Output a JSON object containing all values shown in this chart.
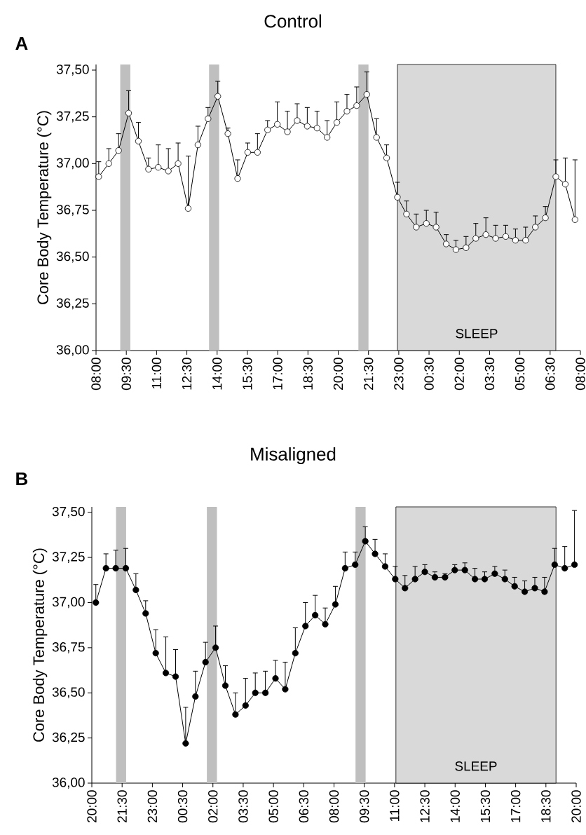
{
  "chart_data": [
    {
      "type": "line",
      "title": "Control",
      "ylabel": "Core Body Temperature (°C)",
      "annotations": [
        "A"
      ],
      "x": [
        "2000-01-01T08:08",
        "2000-01-01T08:38",
        "2000-01-01T09:07",
        "2000-01-01T09:37",
        "2000-01-01T10:06",
        "2000-01-01T10:36",
        "2000-01-01T11:05",
        "2000-01-01T11:35",
        "2000-01-01T12:04",
        "2000-01-01T12:34",
        "2000-01-01T13:03",
        "2000-01-01T13:33",
        "2000-01-01T14:02",
        "2000-01-01T14:32",
        "2000-01-01T15:01",
        "2000-01-01T15:31",
        "2000-01-01T16:00",
        "2000-01-01T16:30",
        "2000-01-01T16:59",
        "2000-01-01T17:29",
        "2000-01-01T17:58",
        "2000-01-01T18:28",
        "2000-01-01T18:57",
        "2000-01-01T19:27",
        "2000-01-01T19:56",
        "2000-01-01T20:26",
        "2000-01-01T20:55",
        "2000-01-01T21:25",
        "2000-01-01T21:54",
        "2000-01-01T22:24",
        "2000-01-01T22:56",
        "2000-01-01T23:23",
        "2000-01-01T23:52",
        "2000-01-02T00:22",
        "2000-01-02T00:51",
        "2000-01-02T01:21",
        "2000-01-02T01:50",
        "2000-01-02T02:20",
        "2000-01-02T02:49",
        "2000-01-02T03:19",
        "2000-01-02T03:48",
        "2000-01-02T04:18",
        "2000-01-02T04:47",
        "2000-01-02T05:17",
        "2000-01-02T05:46",
        "2000-01-02T06:16",
        "2000-01-02T06:47",
        "2000-01-02T07:15",
        "2000-01-02T07:44"
      ],
      "series": [
        {
          "color": "#ffffff",
          "values": [
            36.93,
            37.0,
            37.07,
            37.27,
            37.12,
            36.97,
            36.98,
            36.96,
            37.0,
            36.76,
            37.1,
            37.24,
            37.36,
            37.16,
            36.92,
            37.06,
            37.06,
            37.18,
            37.21,
            37.17,
            37.23,
            37.2,
            37.19,
            37.14,
            37.22,
            37.28,
            37.31,
            37.37,
            37.14,
            37.03,
            36.82,
            36.73,
            36.66,
            36.68,
            36.66,
            36.57,
            36.54,
            36.55,
            36.6,
            36.62,
            36.6,
            36.61,
            36.59,
            36.59,
            36.66,
            36.71,
            36.93,
            36.89,
            36.7
          ],
          "errors": [
            [
              36.93,
              37.01
            ],
            [
              37.0,
              37.08
            ],
            [
              37.07,
              37.16
            ],
            [
              37.27,
              37.39
            ],
            [
              37.12,
              37.22
            ],
            [
              36.97,
              37.03
            ],
            [
              36.98,
              37.1
            ],
            [
              36.96,
              37.08
            ],
            [
              37.0,
              37.11
            ],
            [
              36.76,
              37.04
            ],
            [
              37.1,
              37.2
            ],
            [
              37.24,
              37.3
            ],
            [
              37.36,
              37.44
            ],
            [
              37.16,
              37.19
            ],
            [
              36.92,
              37.02
            ],
            [
              37.06,
              37.11
            ],
            [
              37.06,
              37.16
            ],
            [
              37.18,
              37.23
            ],
            [
              37.21,
              37.33
            ],
            [
              37.17,
              37.28
            ],
            [
              37.23,
              37.32
            ],
            [
              37.2,
              37.3
            ],
            [
              37.19,
              37.28
            ],
            [
              37.14,
              37.23
            ],
            [
              37.22,
              37.33
            ],
            [
              37.28,
              37.37
            ],
            [
              37.31,
              37.41
            ],
            [
              37.37,
              37.49
            ],
            [
              37.14,
              37.24
            ],
            [
              37.03,
              37.1
            ],
            [
              36.82,
              36.9
            ],
            [
              36.73,
              36.8
            ],
            [
              36.66,
              36.73
            ],
            [
              36.68,
              36.75
            ],
            [
              36.66,
              36.74
            ],
            [
              36.57,
              36.62
            ],
            [
              36.54,
              36.59
            ],
            [
              36.55,
              36.61
            ],
            [
              36.6,
              36.68
            ],
            [
              36.62,
              36.71
            ],
            [
              36.6,
              36.67
            ],
            [
              36.61,
              36.67
            ],
            [
              36.59,
              36.65
            ],
            [
              36.59,
              36.66
            ],
            [
              36.66,
              36.72
            ],
            [
              36.71,
              36.77
            ],
            [
              36.93,
              37.02
            ],
            [
              36.89,
              37.03
            ],
            [
              36.7,
              37.02
            ]
          ]
        }
      ],
      "xlim": [
        "2000-01-01T08:00",
        "2000-01-02T08:00"
      ],
      "ylim": [
        36,
        37.53
      ],
      "xticks": [
        {
          "value": "2000-01-01T08:00",
          "label": "08:00"
        },
        {
          "value": "2000-01-01T09:30",
          "label": "09:30"
        },
        {
          "value": "2000-01-01T11:00",
          "label": "11:00"
        },
        {
          "value": "2000-01-01T12:30",
          "label": "12:30"
        },
        {
          "value": "2000-01-01T14:00",
          "label": "14:00"
        },
        {
          "value": "2000-01-01T15:30",
          "label": "15:30"
        },
        {
          "value": "2000-01-01T17:00",
          "label": "17:00"
        },
        {
          "value": "2000-01-01T18:30",
          "label": "18:30"
        },
        {
          "value": "2000-01-01T20:00",
          "label": "20:00"
        },
        {
          "value": "2000-01-01T21:30",
          "label": "21:30"
        },
        {
          "value": "2000-01-01T23:00",
          "label": "23:00"
        },
        {
          "value": "2000-01-02T00:30",
          "label": "00:30"
        },
        {
          "value": "2000-01-02T02:00",
          "label": "02:00"
        },
        {
          "value": "2000-01-02T03:30",
          "label": "03:30"
        },
        {
          "value": "2000-01-02T05:00",
          "label": "05:00"
        },
        {
          "value": "2000-01-02T06:30",
          "label": "06:30"
        },
        {
          "value": "2000-01-02T08:00",
          "label": "08:00"
        }
      ],
      "yticks": [
        {
          "value": 36,
          "label": "36,00"
        },
        {
          "value": 36.25,
          "label": "36,25"
        },
        {
          "value": 36.5,
          "label": "36,50"
        },
        {
          "value": 36.75,
          "label": "36,75"
        },
        {
          "value": 37,
          "label": "37,00"
        },
        {
          "value": 37.25,
          "label": "37,25"
        },
        {
          "value": 37.5,
          "label": "37,50"
        }
      ],
      "bands": [
        {
          "axis": "x",
          "from": "2000-01-01T09:12",
          "to": "2000-01-01T09:42",
          "color": "#bfbfbf"
        },
        {
          "axis": "x",
          "from": "2000-01-01T13:36",
          "to": "2000-01-01T14:06",
          "color": "#bfbfbf"
        },
        {
          "axis": "x",
          "from": "2000-01-01T21:00",
          "to": "2000-01-01T21:30",
          "color": "#bfbfbf"
        },
        {
          "axis": "x",
          "from": "2000-01-01T22:56",
          "to": "2000-01-02T06:47",
          "label": "SLEEP",
          "color": "#d9d9d9"
        }
      ],
      "grid": false,
      "marker": "circle",
      "line_style": "solid"
    },
    {
      "type": "line",
      "title": "Misaligned",
      "ylabel": "Core Body Temperature (°C)",
      "annotations": [
        "B"
      ],
      "x": [
        "2000-01-01T20:12",
        "2000-01-01T20:42",
        "2000-01-01T21:11",
        "2000-01-01T21:41",
        "2000-01-01T22:11",
        "2000-01-01T22:40",
        "2000-01-01T23:10",
        "2000-01-01T23:40",
        "2000-01-02T00:09",
        "2000-01-02T00:39",
        "2000-01-02T01:08",
        "2000-01-02T01:38",
        "2000-01-02T02:08",
        "2000-01-02T02:37",
        "2000-01-02T03:07",
        "2000-01-02T03:37",
        "2000-01-02T04:06",
        "2000-01-02T04:36",
        "2000-01-02T05:06",
        "2000-01-02T05:35",
        "2000-01-02T06:05",
        "2000-01-02T06:35",
        "2000-01-02T07:04",
        "2000-01-02T07:34",
        "2000-01-02T08:04",
        "2000-01-02T08:33",
        "2000-01-02T09:03",
        "2000-01-02T09:33",
        "2000-01-02T10:02",
        "2000-01-02T10:32",
        "2000-01-02T11:02",
        "2000-01-02T11:31",
        "2000-01-02T12:01",
        "2000-01-02T12:30",
        "2000-01-02T13:00",
        "2000-01-02T13:30",
        "2000-01-02T13:59",
        "2000-01-02T14:29",
        "2000-01-02T14:59",
        "2000-01-02T15:28",
        "2000-01-02T15:58",
        "2000-01-02T16:28",
        "2000-01-02T16:57",
        "2000-01-02T17:27",
        "2000-01-02T17:57",
        "2000-01-02T18:26",
        "2000-01-02T18:56",
        "2000-01-02T19:26",
        "2000-01-02T19:55"
      ],
      "series": [
        {
          "color": "#000000",
          "values": [
            37.0,
            37.19,
            37.19,
            37.19,
            37.07,
            36.94,
            36.72,
            36.61,
            36.59,
            36.22,
            36.48,
            36.67,
            36.75,
            36.54,
            36.38,
            36.43,
            36.5,
            36.5,
            36.58,
            36.52,
            36.72,
            36.87,
            36.93,
            36.88,
            36.99,
            37.19,
            37.21,
            37.34,
            37.27,
            37.2,
            37.13,
            37.08,
            37.13,
            37.17,
            37.14,
            37.14,
            37.18,
            37.18,
            37.13,
            37.13,
            37.16,
            37.13,
            37.09,
            37.06,
            37.08,
            37.06,
            37.21,
            37.19,
            37.21
          ],
          "errors": [
            [
              37.0,
              37.1
            ],
            [
              37.19,
              37.27
            ],
            [
              37.19,
              37.29
            ],
            [
              37.19,
              37.3
            ],
            [
              37.07,
              37.16
            ],
            [
              36.94,
              37.01
            ],
            [
              36.72,
              36.85
            ],
            [
              36.61,
              36.81
            ],
            [
              36.59,
              36.74
            ],
            [
              36.22,
              36.42
            ],
            [
              36.48,
              36.62
            ],
            [
              36.67,
              36.78
            ],
            [
              36.75,
              36.87
            ],
            [
              36.54,
              36.65
            ],
            [
              36.38,
              36.5
            ],
            [
              36.43,
              36.58
            ],
            [
              36.5,
              36.61
            ],
            [
              36.5,
              36.62
            ],
            [
              36.58,
              36.68
            ],
            [
              36.52,
              36.67
            ],
            [
              36.72,
              36.86
            ],
            [
              36.87,
              37.0
            ],
            [
              36.93,
              37.04
            ],
            [
              36.88,
              36.97
            ],
            [
              36.99,
              37.09
            ],
            [
              37.19,
              37.28
            ],
            [
              37.21,
              37.28
            ],
            [
              37.34,
              37.42
            ],
            [
              37.27,
              37.35
            ],
            [
              37.2,
              37.27
            ],
            [
              37.13,
              37.2
            ],
            [
              37.08,
              37.15
            ],
            [
              37.13,
              37.2
            ],
            [
              37.17,
              37.21
            ],
            [
              37.14,
              37.17
            ],
            [
              37.14,
              37.16
            ],
            [
              37.18,
              37.21
            ],
            [
              37.18,
              37.22
            ],
            [
              37.13,
              37.19
            ],
            [
              37.13,
              37.17
            ],
            [
              37.16,
              37.2
            ],
            [
              37.13,
              37.18
            ],
            [
              37.09,
              37.14
            ],
            [
              37.06,
              37.12
            ],
            [
              37.08,
              37.14
            ],
            [
              37.06,
              37.14
            ],
            [
              37.21,
              37.3
            ],
            [
              37.19,
              37.31
            ],
            [
              37.21,
              37.51
            ]
          ]
        }
      ],
      "xlim": [
        "2000-01-01T20:00",
        "2000-01-02T20:00"
      ],
      "ylim": [
        36,
        37.53
      ],
      "xticks": [
        {
          "value": "2000-01-01T20:00",
          "label": "20:00"
        },
        {
          "value": "2000-01-01T21:30",
          "label": "21:30"
        },
        {
          "value": "2000-01-01T23:00",
          "label": "23:00"
        },
        {
          "value": "2000-01-02T00:30",
          "label": "00:30"
        },
        {
          "value": "2000-01-02T02:00",
          "label": "02:00"
        },
        {
          "value": "2000-01-02T03:30",
          "label": "03:30"
        },
        {
          "value": "2000-01-02T05:00",
          "label": "05:00"
        },
        {
          "value": "2000-01-02T06:30",
          "label": "06:30"
        },
        {
          "value": "2000-01-02T08:00",
          "label": "08:00"
        },
        {
          "value": "2000-01-02T09:30",
          "label": "09:30"
        },
        {
          "value": "2000-01-02T11:00",
          "label": "11:00"
        },
        {
          "value": "2000-01-02T12:30",
          "label": "12:30"
        },
        {
          "value": "2000-01-02T14:00",
          "label": "14:00"
        },
        {
          "value": "2000-01-02T15:30",
          "label": "15:30"
        },
        {
          "value": "2000-01-02T17:00",
          "label": "17:00"
        },
        {
          "value": "2000-01-02T18:30",
          "label": "18:30"
        },
        {
          "value": "2000-01-02T20:00",
          "label": "20:00"
        }
      ],
      "yticks": [
        {
          "value": 36,
          "label": "36,00"
        },
        {
          "value": 36.25,
          "label": "36,25"
        },
        {
          "value": 36.5,
          "label": "36,50"
        },
        {
          "value": 36.75,
          "label": "36,75"
        },
        {
          "value": 37,
          "label": "37,00"
        },
        {
          "value": 37.25,
          "label": "37,25"
        },
        {
          "value": 37.5,
          "label": "37,50"
        }
      ],
      "bands": [
        {
          "axis": "x",
          "from": "2000-01-01T21:12",
          "to": "2000-01-01T21:42",
          "color": "#bfbfbf"
        },
        {
          "axis": "x",
          "from": "2000-01-02T01:42",
          "to": "2000-01-02T02:12",
          "color": "#bfbfbf"
        },
        {
          "axis": "x",
          "from": "2000-01-02T09:04",
          "to": "2000-01-02T09:34",
          "color": "#bfbfbf"
        },
        {
          "axis": "x",
          "from": "2000-01-02T11:04",
          "to": "2000-01-02T19:00",
          "label": "SLEEP",
          "color": "#d9d9d9"
        }
      ],
      "grid": false,
      "marker": "circle",
      "line_style": "solid"
    }
  ]
}
